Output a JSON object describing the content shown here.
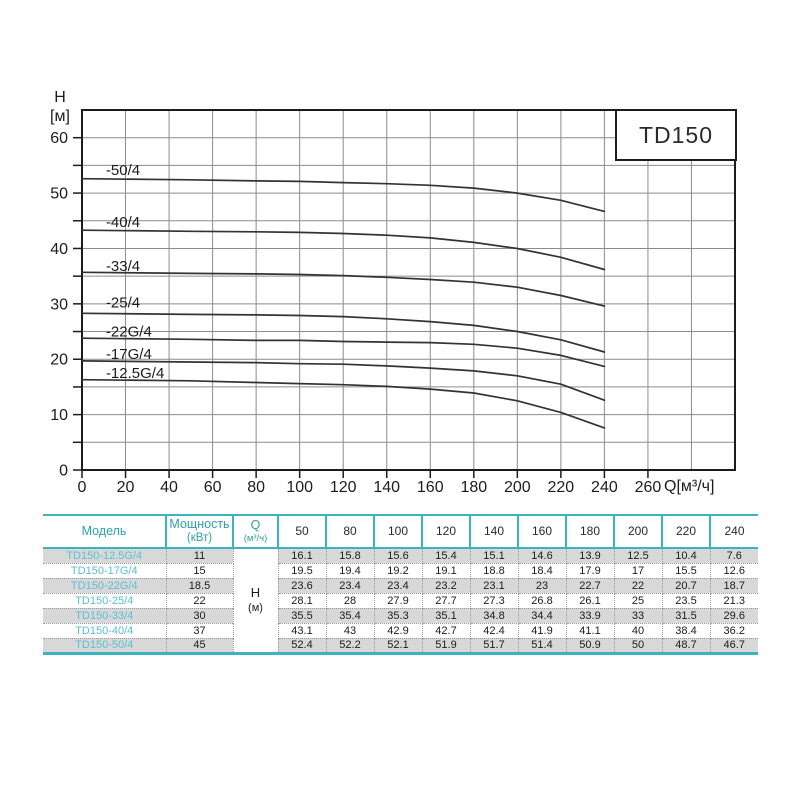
{
  "chart": {
    "model_box_label": "TD150",
    "y_axis_title_line1": "H",
    "y_axis_title_line2": "[м]",
    "x_axis_title": "Q[м³/ч]",
    "x_tick_labels": [
      "0",
      "20",
      "40",
      "60",
      "80",
      "100",
      "120",
      "140",
      "160",
      "180",
      "200",
      "220",
      "240",
      "260"
    ],
    "y_tick_labels": [
      "0",
      "10",
      "20",
      "30",
      "40",
      "50",
      "60"
    ],
    "colors": {
      "grid": "#8c8c8c",
      "axis": "#1c1c1c",
      "curve": "#333333",
      "text": "#1c1c1c"
    }
  },
  "chart_data": {
    "type": "line",
    "title": "TD150",
    "xlabel": "Q[м³/ч]",
    "ylabel": "H [м]",
    "xlim": [
      0,
      300
    ],
    "ylim": [
      0,
      65
    ],
    "grid": true,
    "grid_x_step": 20,
    "grid_y_step": 5,
    "x_tick_step": 20,
    "y_tick_step": 10,
    "legend_position": "inline-left-labels",
    "x": [
      0,
      50,
      80,
      100,
      120,
      140,
      160,
      180,
      200,
      220,
      240
    ],
    "series": [
      {
        "name": "-50/4",
        "label_h": 54.2,
        "values": [
          52.6,
          52.4,
          52.2,
          52.1,
          51.9,
          51.7,
          51.4,
          50.9,
          50,
          48.7,
          46.7
        ]
      },
      {
        "name": "-40/4",
        "label_h": 44.8,
        "values": [
          43.3,
          43.1,
          43,
          42.9,
          42.7,
          42.4,
          41.9,
          41.1,
          40,
          38.4,
          36.2
        ]
      },
      {
        "name": "-33/4",
        "label_h": 36.8,
        "values": [
          35.7,
          35.5,
          35.4,
          35.3,
          35.1,
          34.8,
          34.4,
          33.9,
          33,
          31.5,
          29.6
        ]
      },
      {
        "name": "-25/4",
        "label_h": 30.2,
        "values": [
          28.3,
          28.1,
          28,
          27.9,
          27.7,
          27.3,
          26.8,
          26.1,
          25,
          23.5,
          21.3
        ]
      },
      {
        "name": "-22G/4",
        "label_h": 25.0,
        "values": [
          23.8,
          23.6,
          23.4,
          23.4,
          23.2,
          23.1,
          23,
          22.7,
          22,
          20.7,
          18.7
        ]
      },
      {
        "name": "-17G/4",
        "label_h": 20.9,
        "values": [
          19.7,
          19.5,
          19.4,
          19.2,
          19.1,
          18.8,
          18.4,
          17.9,
          17,
          15.5,
          12.6
        ]
      },
      {
        "name": "-12.5G/4",
        "label_h": 17.5,
        "values": [
          16.3,
          16.1,
          15.8,
          15.6,
          15.4,
          15.1,
          14.6,
          13.9,
          12.5,
          10.4,
          7.6
        ]
      }
    ]
  },
  "table": {
    "col_headers": {
      "model": "Модель",
      "power_line1": "Мощность",
      "power_line2": "(кВт)",
      "q_line1": "Q",
      "q_line2": "(м³/ч)"
    },
    "flow_columns": [
      "50",
      "80",
      "100",
      "120",
      "140",
      "160",
      "180",
      "200",
      "220",
      "240"
    ],
    "h_cell_line1": "H",
    "h_cell_line2": "(м)",
    "rows": [
      {
        "model": "TD150-12.5G/4",
        "power": "11",
        "h_values": [
          "16.1",
          "15.8",
          "15.6",
          "15.4",
          "15.1",
          "14.6",
          "13.9",
          "12.5",
          "10.4",
          "7.6"
        ]
      },
      {
        "model": "TD150-17G/4",
        "power": "15",
        "h_values": [
          "19.5",
          "19.4",
          "19.2",
          "19.1",
          "18.8",
          "18.4",
          "17.9",
          "17",
          "15.5",
          "12.6"
        ]
      },
      {
        "model": "TD150-22G/4",
        "power": "18.5",
        "h_values": [
          "23.6",
          "23.4",
          "23.4",
          "23.2",
          "23.1",
          "23",
          "22.7",
          "22",
          "20.7",
          "18.7"
        ]
      },
      {
        "model": "TD150-25/4",
        "power": "22",
        "h_values": [
          "28.1",
          "28",
          "27.9",
          "27.7",
          "27.3",
          "26.8",
          "26.1",
          "25",
          "23.5",
          "21.3"
        ]
      },
      {
        "model": "TD150-33/4",
        "power": "30",
        "h_values": [
          "35.5",
          "35.4",
          "35.3",
          "35.1",
          "34.8",
          "34.4",
          "33.9",
          "33",
          "31.5",
          "29.6"
        ]
      },
      {
        "model": "TD150-40/4",
        "power": "37",
        "h_values": [
          "43.1",
          "43",
          "42.9",
          "42.7",
          "42.4",
          "41.9",
          "41.1",
          "40",
          "38.4",
          "36.2"
        ]
      },
      {
        "model": "TD150-50/4",
        "power": "45",
        "h_values": [
          "52.4",
          "52.2",
          "52.1",
          "51.9",
          "51.7",
          "51.4",
          "50.9",
          "50",
          "48.7",
          "46.7"
        ]
      }
    ],
    "colors": {
      "border": "#3cb4c0",
      "header_text": "#2f9fae",
      "model_text": "#58c0d3",
      "row_stripe": "#d8d8d8"
    }
  }
}
